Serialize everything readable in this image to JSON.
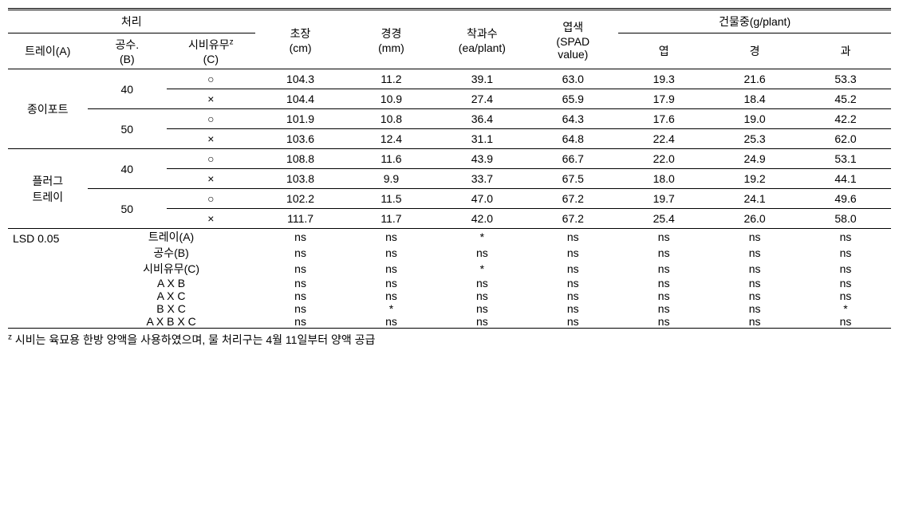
{
  "header": {
    "treatment": "처리",
    "tray_a": "트레이(A)",
    "gongsu_b": "공수.\n(B)",
    "sibi_c_html": "시비유무<span class='sup'>z</span><br>(C)",
    "chojang_html": "초장<br>(cm)",
    "gyeonggyeong_html": "경경<br>(mm)",
    "chakgwasu_html": "착과수<br>(ea/plant)",
    "yeopsaek_html": "엽색<br>(SPAD<br>value)",
    "geonmuljung": "건물중(g/plant)",
    "yeop": "엽",
    "gyeong": "경",
    "gwa": "과"
  },
  "tray1": "종이포트",
  "tray2_line1": "플러그",
  "tray2_line2": "트레이",
  "b_40": "40",
  "b_50": "50",
  "c_yes": "○",
  "c_no": "×",
  "r1": {
    "chojang": "104.3",
    "gg": "11.2",
    "ck": "39.1",
    "spad": "63.0",
    "yeop": "19.3",
    "gyeong": "21.6",
    "gwa": "53.3"
  },
  "r2": {
    "chojang": "104.4",
    "gg": "10.9",
    "ck": "27.4",
    "spad": "65.9",
    "yeop": "17.9",
    "gyeong": "18.4",
    "gwa": "45.2"
  },
  "r3": {
    "chojang": "101.9",
    "gg": "10.8",
    "ck": "36.4",
    "spad": "64.3",
    "yeop": "17.6",
    "gyeong": "19.0",
    "gwa": "42.2"
  },
  "r4": {
    "chojang": "103.6",
    "gg": "12.4",
    "ck": "31.1",
    "spad": "64.8",
    "yeop": "22.4",
    "gyeong": "25.3",
    "gwa": "62.0"
  },
  "r5": {
    "chojang": "108.8",
    "gg": "11.6",
    "ck": "43.9",
    "spad": "66.7",
    "yeop": "22.0",
    "gyeong": "24.9",
    "gwa": "53.1"
  },
  "r6": {
    "chojang": "103.8",
    "gg": "9.9",
    "ck": "33.7",
    "spad": "67.5",
    "yeop": "18.0",
    "gyeong": "19.2",
    "gwa": "44.1"
  },
  "r7": {
    "chojang": "102.2",
    "gg": "11.5",
    "ck": "47.0",
    "spad": "67.2",
    "yeop": "19.7",
    "gyeong": "24.1",
    "gwa": "49.6"
  },
  "r8": {
    "chojang": "111.7",
    "gg": "11.7",
    "ck": "42.0",
    "spad": "67.2",
    "yeop": "25.4",
    "gyeong": "26.0",
    "gwa": "58.0"
  },
  "lsd_label": "LSD 0.05",
  "lsd_rows": [
    {
      "label": "트레이(A)",
      "v": [
        "ns",
        "ns",
        "*",
        "ns",
        "ns",
        "ns",
        "ns"
      ]
    },
    {
      "label": "공수(B)",
      "v": [
        "ns",
        "ns",
        "ns",
        "ns",
        "ns",
        "ns",
        "ns"
      ]
    },
    {
      "label": "시비유무(C)",
      "v": [
        "ns",
        "ns",
        "*",
        "ns",
        "ns",
        "ns",
        "ns"
      ]
    },
    {
      "label": "A X B",
      "v": [
        "ns",
        "ns",
        "ns",
        "ns",
        "ns",
        "ns",
        "ns"
      ]
    },
    {
      "label": "A X C",
      "v": [
        "ns",
        "ns",
        "ns",
        "ns",
        "ns",
        "ns",
        "ns"
      ]
    },
    {
      "label": "B X C",
      "v": [
        "ns",
        "*",
        "ns",
        "ns",
        "ns",
        "ns",
        "*"
      ]
    },
    {
      "label": "A X B X C",
      "v": [
        "ns",
        "ns",
        "ns",
        "ns",
        "ns",
        "ns",
        "ns"
      ]
    }
  ],
  "footnote_html": "<span class='sup'>z</span> 시비는 육묘용 한방 양액을 사용하였으며, 물 처리구는 4월 11일부터 양액 공급"
}
